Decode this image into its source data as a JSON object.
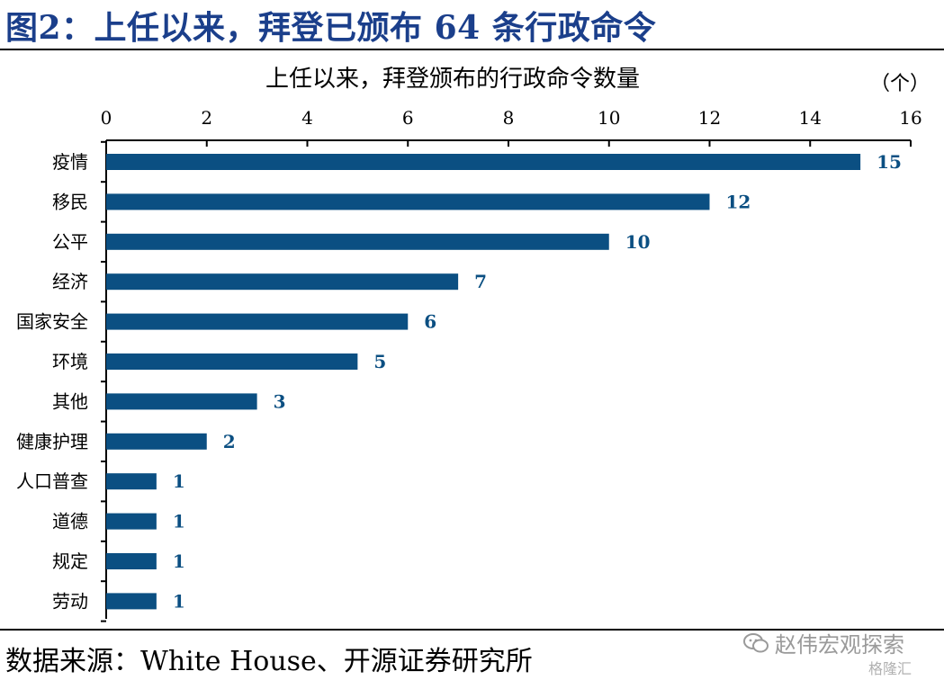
{
  "figure": {
    "title": "图2：上任以来，拜登已颁布 64 条行政命令",
    "source": "数据来源：White House、开源证券研究所",
    "watermark": "赵伟宏观探索",
    "watermark_sub": "格隆汇"
  },
  "colors": {
    "bar": "#0b4f82",
    "title": "#1b3f8b",
    "value_label": "#0b4f82"
  },
  "chart_data": {
    "type": "bar",
    "orientation": "horizontal",
    "title": "上任以来，拜登颁布的行政命令数量",
    "unit": "（个）",
    "categories": [
      "疫情",
      "移民",
      "公平",
      "经济",
      "国家安全",
      "环境",
      "其他",
      "健康护理",
      "人口普查",
      "道德",
      "规定",
      "劳动"
    ],
    "values": [
      15,
      12,
      10,
      7,
      6,
      5,
      3,
      2,
      1,
      1,
      1,
      1
    ],
    "xlim": [
      0,
      16
    ],
    "xticks": [
      0,
      2,
      4,
      6,
      8,
      10,
      12,
      14,
      16
    ],
    "axis_position": "top",
    "grid": false,
    "data_labels": true
  }
}
